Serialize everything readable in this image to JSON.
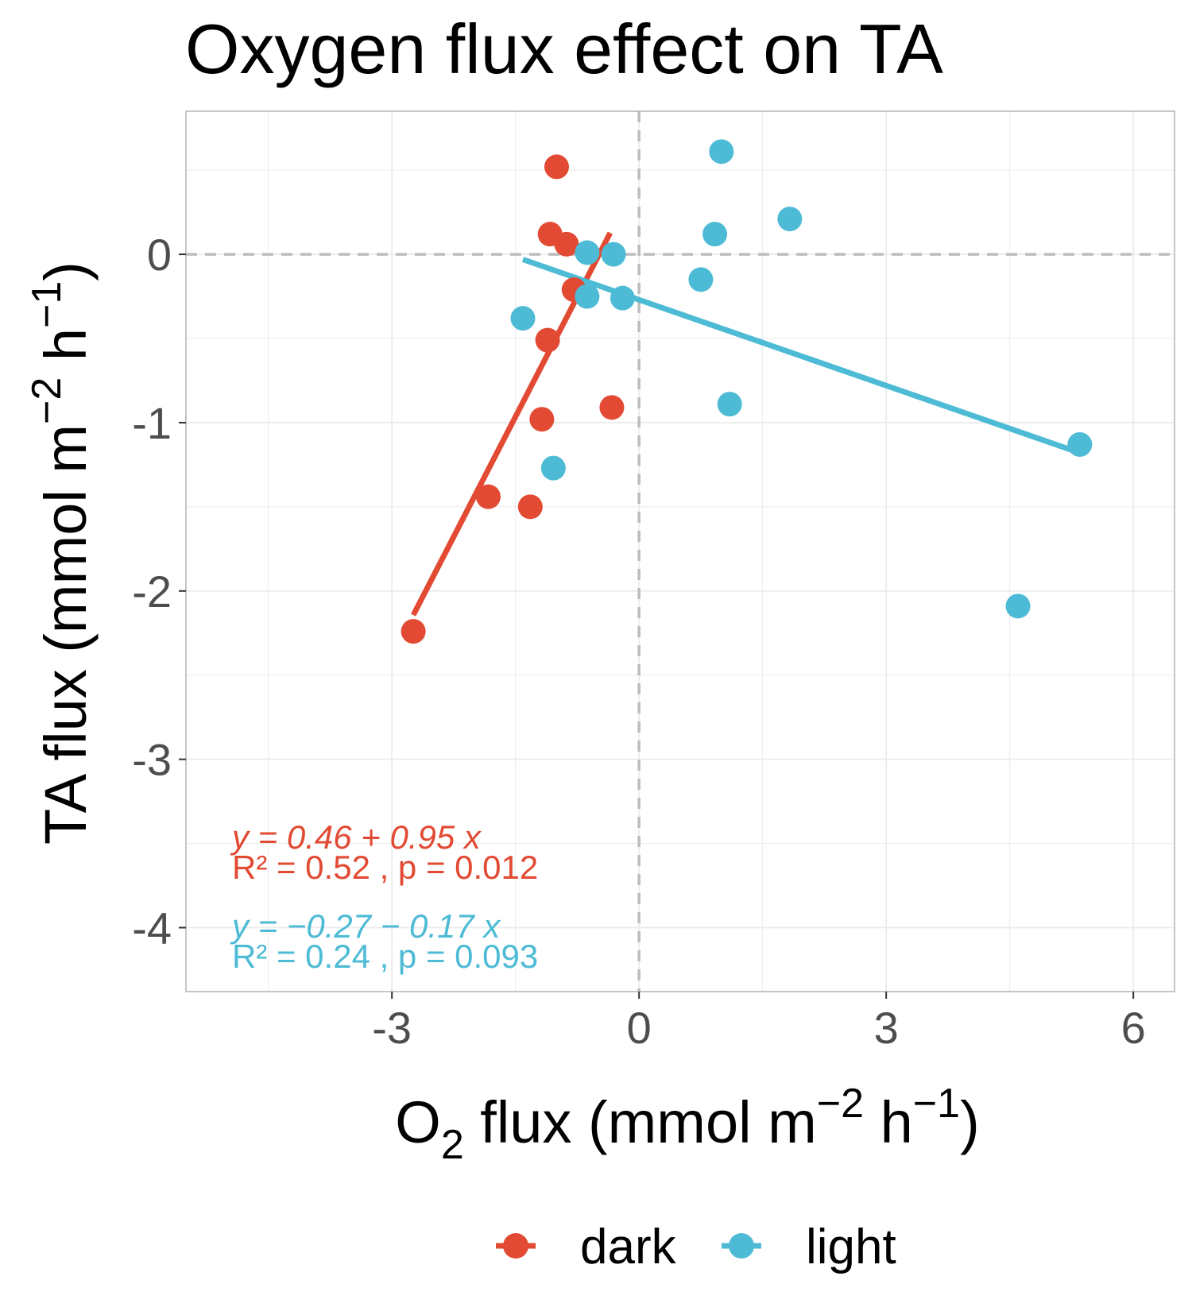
{
  "chart_data": {
    "type": "scatter",
    "title": "Oxygen flux effect on TA",
    "xlabel": {
      "base": "O",
      "sub": "2",
      "rest": " flux (mmol m",
      "sup1": "−2",
      "mid": " h",
      "sup2": "−1",
      "end": ")"
    },
    "ylabel": {
      "base": "TA flux (mmol m",
      "sup1": "−2",
      "mid": " h",
      "sup2": "−1",
      "end": ")"
    },
    "xlim": [
      -5.5,
      6.5
    ],
    "ylim": [
      -4.38,
      0.85
    ],
    "xticks": [
      -3,
      0,
      3,
      6
    ],
    "xtick_labels": [
      "-3",
      "0",
      "3",
      "6"
    ],
    "yticks": [
      0,
      -1,
      -2,
      -3,
      -4
    ],
    "ytick_labels": [
      "0",
      "-1",
      "-2",
      "-3",
      "-4"
    ],
    "grid": true,
    "reference_lines": {
      "x": 0,
      "y": 0,
      "style": "dashed"
    },
    "legend_position": "bottom",
    "series": [
      {
        "name": "dark",
        "color": "#e24a33",
        "points": [
          {
            "x": -1.0,
            "y": 0.52
          },
          {
            "x": -1.08,
            "y": 0.12
          },
          {
            "x": -0.88,
            "y": 0.06
          },
          {
            "x": -0.79,
            "y": -0.21
          },
          {
            "x": -1.11,
            "y": -0.51
          },
          {
            "x": -1.18,
            "y": -0.98
          },
          {
            "x": -0.33,
            "y": -0.91
          },
          {
            "x": -1.83,
            "y": -1.44
          },
          {
            "x": -1.32,
            "y": -1.5
          },
          {
            "x": -2.74,
            "y": -2.24
          }
        ],
        "fit": {
          "x": [
            -2.74,
            -0.35
          ],
          "intercept": 0.46,
          "slope": 0.95
        },
        "equation": {
          "y_eq": "y = 0.46 + 0.95 x",
          "r2": "R² = 0.52 , p = 0.012"
        }
      },
      {
        "name": "light",
        "color": "#4dbbd5",
        "points": [
          {
            "x": 1.0,
            "y": 0.61
          },
          {
            "x": 1.83,
            "y": 0.21
          },
          {
            "x": 0.92,
            "y": 0.12
          },
          {
            "x": -0.63,
            "y": 0.01
          },
          {
            "x": -0.31,
            "y": 0.0
          },
          {
            "x": 0.75,
            "y": -0.15
          },
          {
            "x": -0.63,
            "y": -0.25
          },
          {
            "x": -0.2,
            "y": -0.26
          },
          {
            "x": -1.41,
            "y": -0.38
          },
          {
            "x": 1.1,
            "y": -0.89
          },
          {
            "x": -1.04,
            "y": -1.27
          },
          {
            "x": 5.35,
            "y": -1.13
          },
          {
            "x": 4.6,
            "y": -2.09
          }
        ],
        "fit": {
          "x": [
            -1.41,
            5.35
          ],
          "intercept": -0.27,
          "slope": -0.17
        },
        "equation": {
          "y_eq": "y = −0.27 − 0.17 x",
          "r2": "R² = 0.24 , p = 0.093"
        }
      }
    ]
  }
}
